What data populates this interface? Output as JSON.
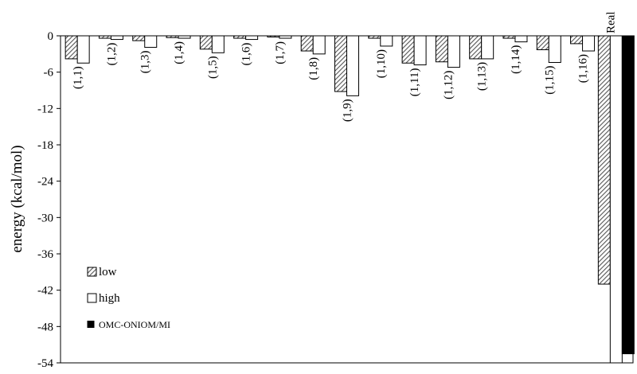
{
  "chart_data": {
    "type": "bar",
    "title": "",
    "xlabel": "",
    "ylabel": "energy (kcal/mol)",
    "ylim": [
      -54,
      0
    ],
    "yticks": [
      0,
      -6,
      -12,
      -18,
      -24,
      -30,
      -36,
      -42,
      -48,
      -54
    ],
    "grid": false,
    "legend_position": "bottom-left",
    "categories": [
      "(1,1)",
      "(1,2)",
      "(1,3)",
      "(1,4)",
      "(1,5)",
      "(1,6)",
      "(1,7)",
      "(1,8)",
      "(1,9)",
      "(1,10)",
      "(1,11)",
      "(1,12)",
      "(1,13)",
      "(1,14)",
      "(1,15)",
      "(1,16)",
      "Real"
    ],
    "series": [
      {
        "name": "low",
        "pattern": "hatched",
        "values": [
          -3.8,
          -0.4,
          -0.8,
          -0.3,
          -2.2,
          -0.4,
          -0.2,
          -2.5,
          -9.2,
          -0.4,
          -4.5,
          -4.3,
          -3.8,
          -0.4,
          -2.3,
          -1.3,
          -41.0
        ]
      },
      {
        "name": "high",
        "pattern": "white",
        "values": [
          -4.5,
          -0.6,
          -1.9,
          -0.4,
          -2.8,
          -0.6,
          -0.4,
          -3.0,
          -9.9,
          -1.7,
          -4.8,
          -5.2,
          -3.8,
          -1.0,
          -4.4,
          -2.5,
          -54.0
        ]
      },
      {
        "name": "OMC-ONIOM/MI",
        "pattern": "black",
        "values": [
          null,
          null,
          null,
          null,
          null,
          null,
          null,
          null,
          null,
          null,
          null,
          null,
          null,
          null,
          null,
          null,
          -52.5
        ]
      }
    ]
  }
}
